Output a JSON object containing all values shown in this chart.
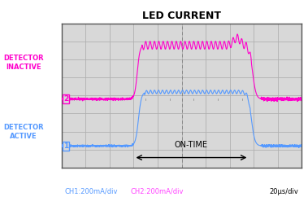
{
  "title": "LED CURRENT",
  "bg_color": "#ffffff",
  "plot_bg": "#d8d8d8",
  "grid_color": "#b0b0b0",
  "ch1_color": "#5599ff",
  "ch2_color": "#ff00cc",
  "text_color_ch1": "#5599ff",
  "text_color_ch2": "#ff44ff",
  "label_inactive": "DETECTOR\nINACTIVE",
  "label_active": "DETECTOR\nACTIVE",
  "ch1_label": "CH1:200mA/div",
  "ch2_label": "CH2:200mA/div",
  "time_label": "20μs/div",
  "on_time_label": "ON-TIME",
  "xlim": [
    0,
    10
  ],
  "ylim": [
    0,
    8
  ],
  "n_grid_x": 10,
  "n_grid_y": 8,
  "ch2_baseline": 3.8,
  "ch2_on_level": 6.8,
  "ch1_baseline": 1.2,
  "ch1_on_level": 4.2,
  "rise_x": 3.0,
  "fall_x": 7.8,
  "center_line_x": 5.0
}
